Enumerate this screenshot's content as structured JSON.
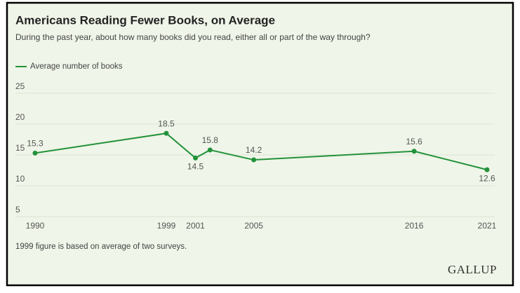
{
  "chart_data": {
    "type": "line",
    "title": "Americans Reading Fewer Books, on Average",
    "subtitle": "During the past year, about how many books did you read, either all or part of the way through?",
    "x": [
      1990,
      1999,
      2001,
      2002,
      2005,
      2016,
      2021
    ],
    "xlim": [
      1990,
      2021
    ],
    "xticks": [
      1990,
      1999,
      2001,
      2005,
      2016,
      2021
    ],
    "ylim": [
      5,
      25
    ],
    "yticks": [
      5,
      10,
      15,
      20,
      25
    ],
    "grid": true,
    "legend": "top-left",
    "series": [
      {
        "name": "Average number of books",
        "color": "#23923a",
        "values": [
          15.3,
          18.5,
          14.5,
          15.8,
          14.2,
          15.6,
          12.6
        ]
      }
    ],
    "note": "1999 figure is based on average of two surveys.",
    "source": "GALLUP"
  }
}
